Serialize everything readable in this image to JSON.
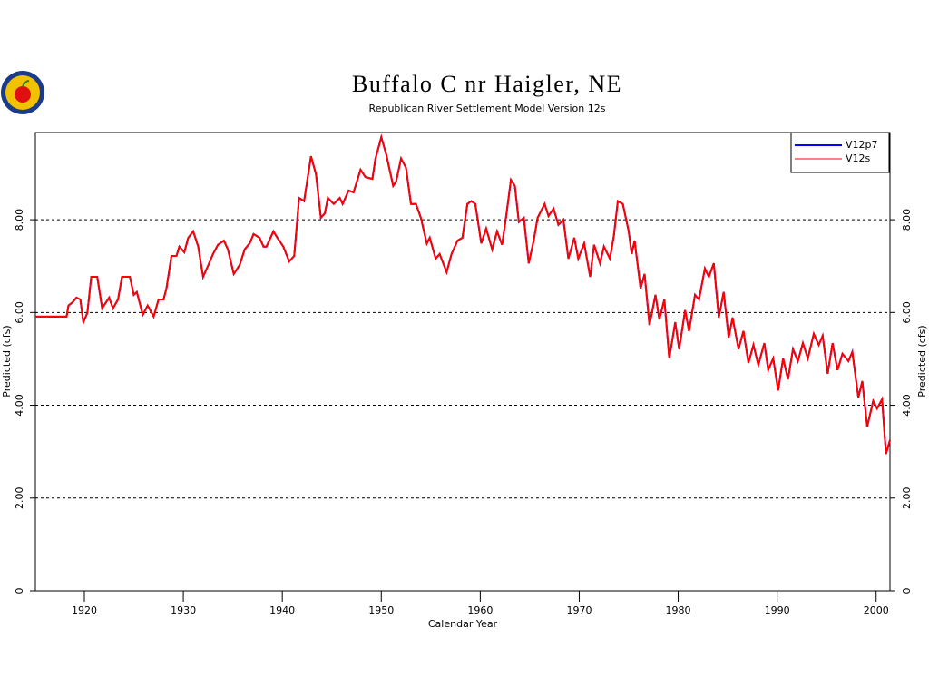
{
  "chart_data": {
    "type": "line",
    "title": "Buffalo C nr Haigler, NE",
    "subtitle": "Republican River Settlement Model Version 12s",
    "xlabel": "Calendar Year",
    "ylabel": "Predicted (cfs)",
    "y2label": "Predicted (cfs)",
    "xlim": [
      1915.05,
      2001.4
    ],
    "xticks": [
      1920,
      1930,
      1940,
      1950,
      1960,
      1970,
      1980,
      1990,
      2000
    ],
    "ylim": [
      0,
      9.88
    ],
    "yticks": [
      0,
      {
        "value": 2,
        "label": "2.00"
      },
      {
        "value": 4,
        "label": "4.00"
      },
      {
        "value": 6,
        "label": "6.00"
      },
      {
        "value": 8,
        "label": "8.00"
      }
    ],
    "y2lim": [
      0,
      9.88
    ],
    "y2ticks": [
      0,
      {
        "value": 2,
        "label": "2.00"
      },
      {
        "value": 4,
        "label": "4.00"
      },
      {
        "value": 6,
        "label": "6.00"
      },
      {
        "value": 8,
        "label": "8.00"
      }
    ],
    "grid": true,
    "legend": "upper right",
    "x": [
      1915.05,
      1918.2,
      1918.4,
      1918.8,
      1919.2,
      1919.6,
      1919.9,
      1920.3,
      1920.7,
      1921.3,
      1921.8,
      1922.5,
      1922.9,
      1923.4,
      1923.8,
      1924.6,
      1925.0,
      1925.3,
      1925.9,
      1926.4,
      1927.0,
      1927.5,
      1928.0,
      1928.3,
      1928.8,
      1929.3,
      1929.6,
      1930.1,
      1930.5,
      1931.0,
      1931.5,
      1932.0,
      1932.6,
      1933.0,
      1933.5,
      1934.1,
      1934.5,
      1935.1,
      1935.7,
      1936.2,
      1936.7,
      1937.1,
      1937.7,
      1938.1,
      1938.4,
      1939.1,
      1939.5,
      1940.1,
      1940.7,
      1941.2,
      1941.7,
      1942.2,
      1942.9,
      1943.4,
      1943.9,
      1944.3,
      1944.6,
      1945.2,
      1945.8,
      1946.1,
      1946.7,
      1947.2,
      1947.9,
      1948.4,
      1949.1,
      1949.4,
      1950.0,
      1950.5,
      1951.2,
      1951.5,
      1952.0,
      1952.5,
      1953.0,
      1953.5,
      1954.0,
      1954.6,
      1954.9,
      1955.5,
      1955.9,
      1956.6,
      1957.1,
      1957.7,
      1958.2,
      1958.7,
      1959.1,
      1959.5,
      1960.1,
      1960.6,
      1961.2,
      1961.7,
      1962.2,
      1962.6,
      1963.1,
      1963.5,
      1963.9,
      1964.4,
      1964.9,
      1965.4,
      1965.8,
      1966.5,
      1966.9,
      1967.4,
      1967.9,
      1968.4,
      1968.9,
      1969.5,
      1969.9,
      1970.5,
      1971.1,
      1971.5,
      1972.1,
      1972.5,
      1973.1,
      1973.5,
      1973.9,
      1974.4,
      1975.0,
      1975.3,
      1975.6,
      1976.2,
      1976.6,
      1977.1,
      1977.7,
      1978.1,
      1978.6,
      1979.1,
      1979.7,
      1980.1,
      1980.7,
      1981.1,
      1981.7,
      1982.1,
      1982.7,
      1983.1,
      1983.6,
      1984.1,
      1984.6,
      1985.1,
      1985.5,
      1986.1,
      1986.6,
      1987.1,
      1987.6,
      1988.1,
      1988.7,
      1989.1,
      1989.6,
      1990.1,
      1990.6,
      1991.1,
      1991.6,
      1992.1,
      1992.6,
      1993.1,
      1993.7,
      1994.2,
      1994.6,
      1995.1,
      1995.6,
      1996.1,
      1996.6,
      1997.2,
      1997.6,
      1998.2,
      1998.6,
      1999.1,
      1999.7,
      2000.1,
      2000.6,
      2001.0,
      2001.4
    ],
    "series": [
      {
        "name": "V12p7",
        "color": "#0000ff",
        "values": [
          5.91,
          5.91,
          6.15,
          6.22,
          6.32,
          6.28,
          5.79,
          5.99,
          6.77,
          6.77,
          6.09,
          6.32,
          6.09,
          6.28,
          6.77,
          6.77,
          6.38,
          6.44,
          5.95,
          6.15,
          5.91,
          6.28,
          6.28,
          6.52,
          7.22,
          7.22,
          7.42,
          7.3,
          7.61,
          7.75,
          7.42,
          6.77,
          7.06,
          7.26,
          7.46,
          7.55,
          7.36,
          6.83,
          7.03,
          7.36,
          7.49,
          7.69,
          7.61,
          7.42,
          7.42,
          7.75,
          7.61,
          7.42,
          7.1,
          7.22,
          8.47,
          8.4,
          9.37,
          8.98,
          8.04,
          8.14,
          8.47,
          8.34,
          8.47,
          8.34,
          8.63,
          8.59,
          9.08,
          8.92,
          8.88,
          9.3,
          9.78,
          9.41,
          8.73,
          8.82,
          9.32,
          9.12,
          8.34,
          8.34,
          8.04,
          7.49,
          7.61,
          7.16,
          7.26,
          6.87,
          7.26,
          7.55,
          7.61,
          8.34,
          8.4,
          8.34,
          7.49,
          7.81,
          7.36,
          7.75,
          7.46,
          8.04,
          8.86,
          8.73,
          7.95,
          8.04,
          7.06,
          7.55,
          8.04,
          8.34,
          8.08,
          8.24,
          7.89,
          8.0,
          7.16,
          7.61,
          7.16,
          7.49,
          6.77,
          7.46,
          7.06,
          7.42,
          7.16,
          7.65,
          8.4,
          8.34,
          7.75,
          7.26,
          7.55,
          6.52,
          6.83,
          5.73,
          6.38,
          5.85,
          6.28,
          5.01,
          5.79,
          5.21,
          6.05,
          5.6,
          6.38,
          6.28,
          6.95,
          6.77,
          7.06,
          5.89,
          6.44,
          5.46,
          5.89,
          5.21,
          5.6,
          4.91,
          5.3,
          4.87,
          5.34,
          4.76,
          5.01,
          4.32,
          5.01,
          4.56,
          5.21,
          4.95,
          5.34,
          5.01,
          5.54,
          5.3,
          5.5,
          4.68,
          5.34,
          4.76,
          5.11,
          4.95,
          5.15,
          4.17,
          4.52,
          3.54,
          4.09,
          3.93,
          4.13,
          2.95,
          3.25
        ]
      },
      {
        "name": "V12s",
        "color": "#ff0000",
        "values": [
          5.91,
          5.91,
          6.15,
          6.22,
          6.32,
          6.28,
          5.79,
          5.99,
          6.77,
          6.77,
          6.09,
          6.32,
          6.09,
          6.28,
          6.77,
          6.77,
          6.38,
          6.44,
          5.95,
          6.15,
          5.91,
          6.28,
          6.28,
          6.52,
          7.22,
          7.22,
          7.42,
          7.3,
          7.61,
          7.75,
          7.42,
          6.77,
          7.06,
          7.26,
          7.46,
          7.55,
          7.36,
          6.83,
          7.03,
          7.36,
          7.49,
          7.69,
          7.61,
          7.42,
          7.42,
          7.75,
          7.61,
          7.42,
          7.1,
          7.22,
          8.47,
          8.4,
          9.37,
          8.98,
          8.04,
          8.14,
          8.47,
          8.34,
          8.47,
          8.34,
          8.63,
          8.59,
          9.08,
          8.92,
          8.88,
          9.3,
          9.78,
          9.41,
          8.73,
          8.82,
          9.32,
          9.12,
          8.34,
          8.34,
          8.04,
          7.49,
          7.61,
          7.16,
          7.26,
          6.87,
          7.26,
          7.55,
          7.61,
          8.34,
          8.4,
          8.34,
          7.49,
          7.81,
          7.36,
          7.75,
          7.46,
          8.04,
          8.86,
          8.73,
          7.95,
          8.04,
          7.06,
          7.55,
          8.04,
          8.34,
          8.08,
          8.24,
          7.89,
          8.0,
          7.16,
          7.61,
          7.16,
          7.49,
          6.77,
          7.46,
          7.06,
          7.42,
          7.16,
          7.65,
          8.4,
          8.34,
          7.75,
          7.26,
          7.55,
          6.52,
          6.83,
          5.73,
          6.38,
          5.85,
          6.28,
          5.01,
          5.79,
          5.21,
          6.05,
          5.6,
          6.38,
          6.28,
          6.95,
          6.77,
          7.06,
          5.89,
          6.44,
          5.46,
          5.89,
          5.21,
          5.6,
          4.91,
          5.3,
          4.87,
          5.34,
          4.76,
          5.01,
          4.32,
          5.01,
          4.56,
          5.21,
          4.95,
          5.34,
          5.01,
          5.54,
          5.3,
          5.5,
          4.68,
          5.34,
          4.76,
          5.11,
          4.95,
          5.15,
          4.17,
          4.52,
          3.54,
          4.09,
          3.93,
          4.13,
          2.95,
          3.25
        ]
      }
    ]
  }
}
